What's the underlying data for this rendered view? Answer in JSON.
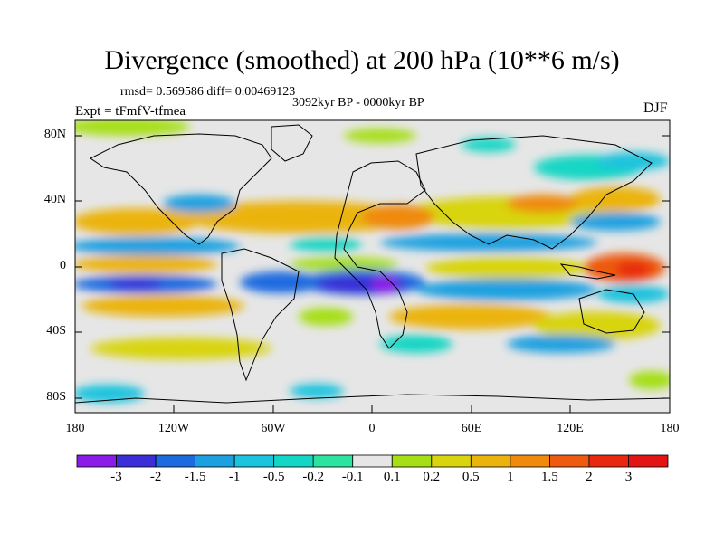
{
  "header": {
    "title": "Divergence (smoothed) at 200 hPa (10**6 m/s)",
    "stats": "rmsd= 0.569586 diff= 0.00469123",
    "period": "3092kyr BP - 0000kyr BP",
    "experiment": "Expt = tFmfV-tfmea",
    "season": "DJF"
  },
  "axes": {
    "y_ticks": [
      "80N",
      "40N",
      "0",
      "40S",
      "80S"
    ],
    "x_ticks": [
      "180",
      "120W",
      "60W",
      "0",
      "60E",
      "120E",
      "180"
    ]
  },
  "colorbar": {
    "labels": [
      "-3",
      "-2",
      "-1.5",
      "-1",
      "-0.5",
      "-0.2",
      "-0.1",
      "0.1",
      "0.2",
      "0.5",
      "1",
      "1.5",
      "2",
      "3"
    ],
    "colors": [
      "#8b1be8",
      "#3b2dd8",
      "#1c6ae0",
      "#1ca0e0",
      "#1ac3de",
      "#14d6c4",
      "#2ee3a0",
      "#e6e6e6",
      "#a6df16",
      "#d8d40e",
      "#ebb40c",
      "#ef8a0c",
      "#ee5a10",
      "#e8290f",
      "#e21414"
    ]
  },
  "chart_data": {
    "type": "heatmap",
    "title": "Divergence (smoothed) at 200 hPa (10**6 m/s)",
    "projection": "cylindrical equidistant",
    "lon_range": [
      -180,
      180
    ],
    "lat_range": [
      -90,
      90
    ],
    "field": "Divergence difference at 200 hPa, DJF (3092kyr BP - 0000kyr BP)",
    "levels": [
      -3,
      -2,
      -1.5,
      -1,
      -0.5,
      -0.2,
      -0.1,
      0.1,
      0.2,
      0.5,
      1,
      1.5,
      2,
      3
    ]
  }
}
